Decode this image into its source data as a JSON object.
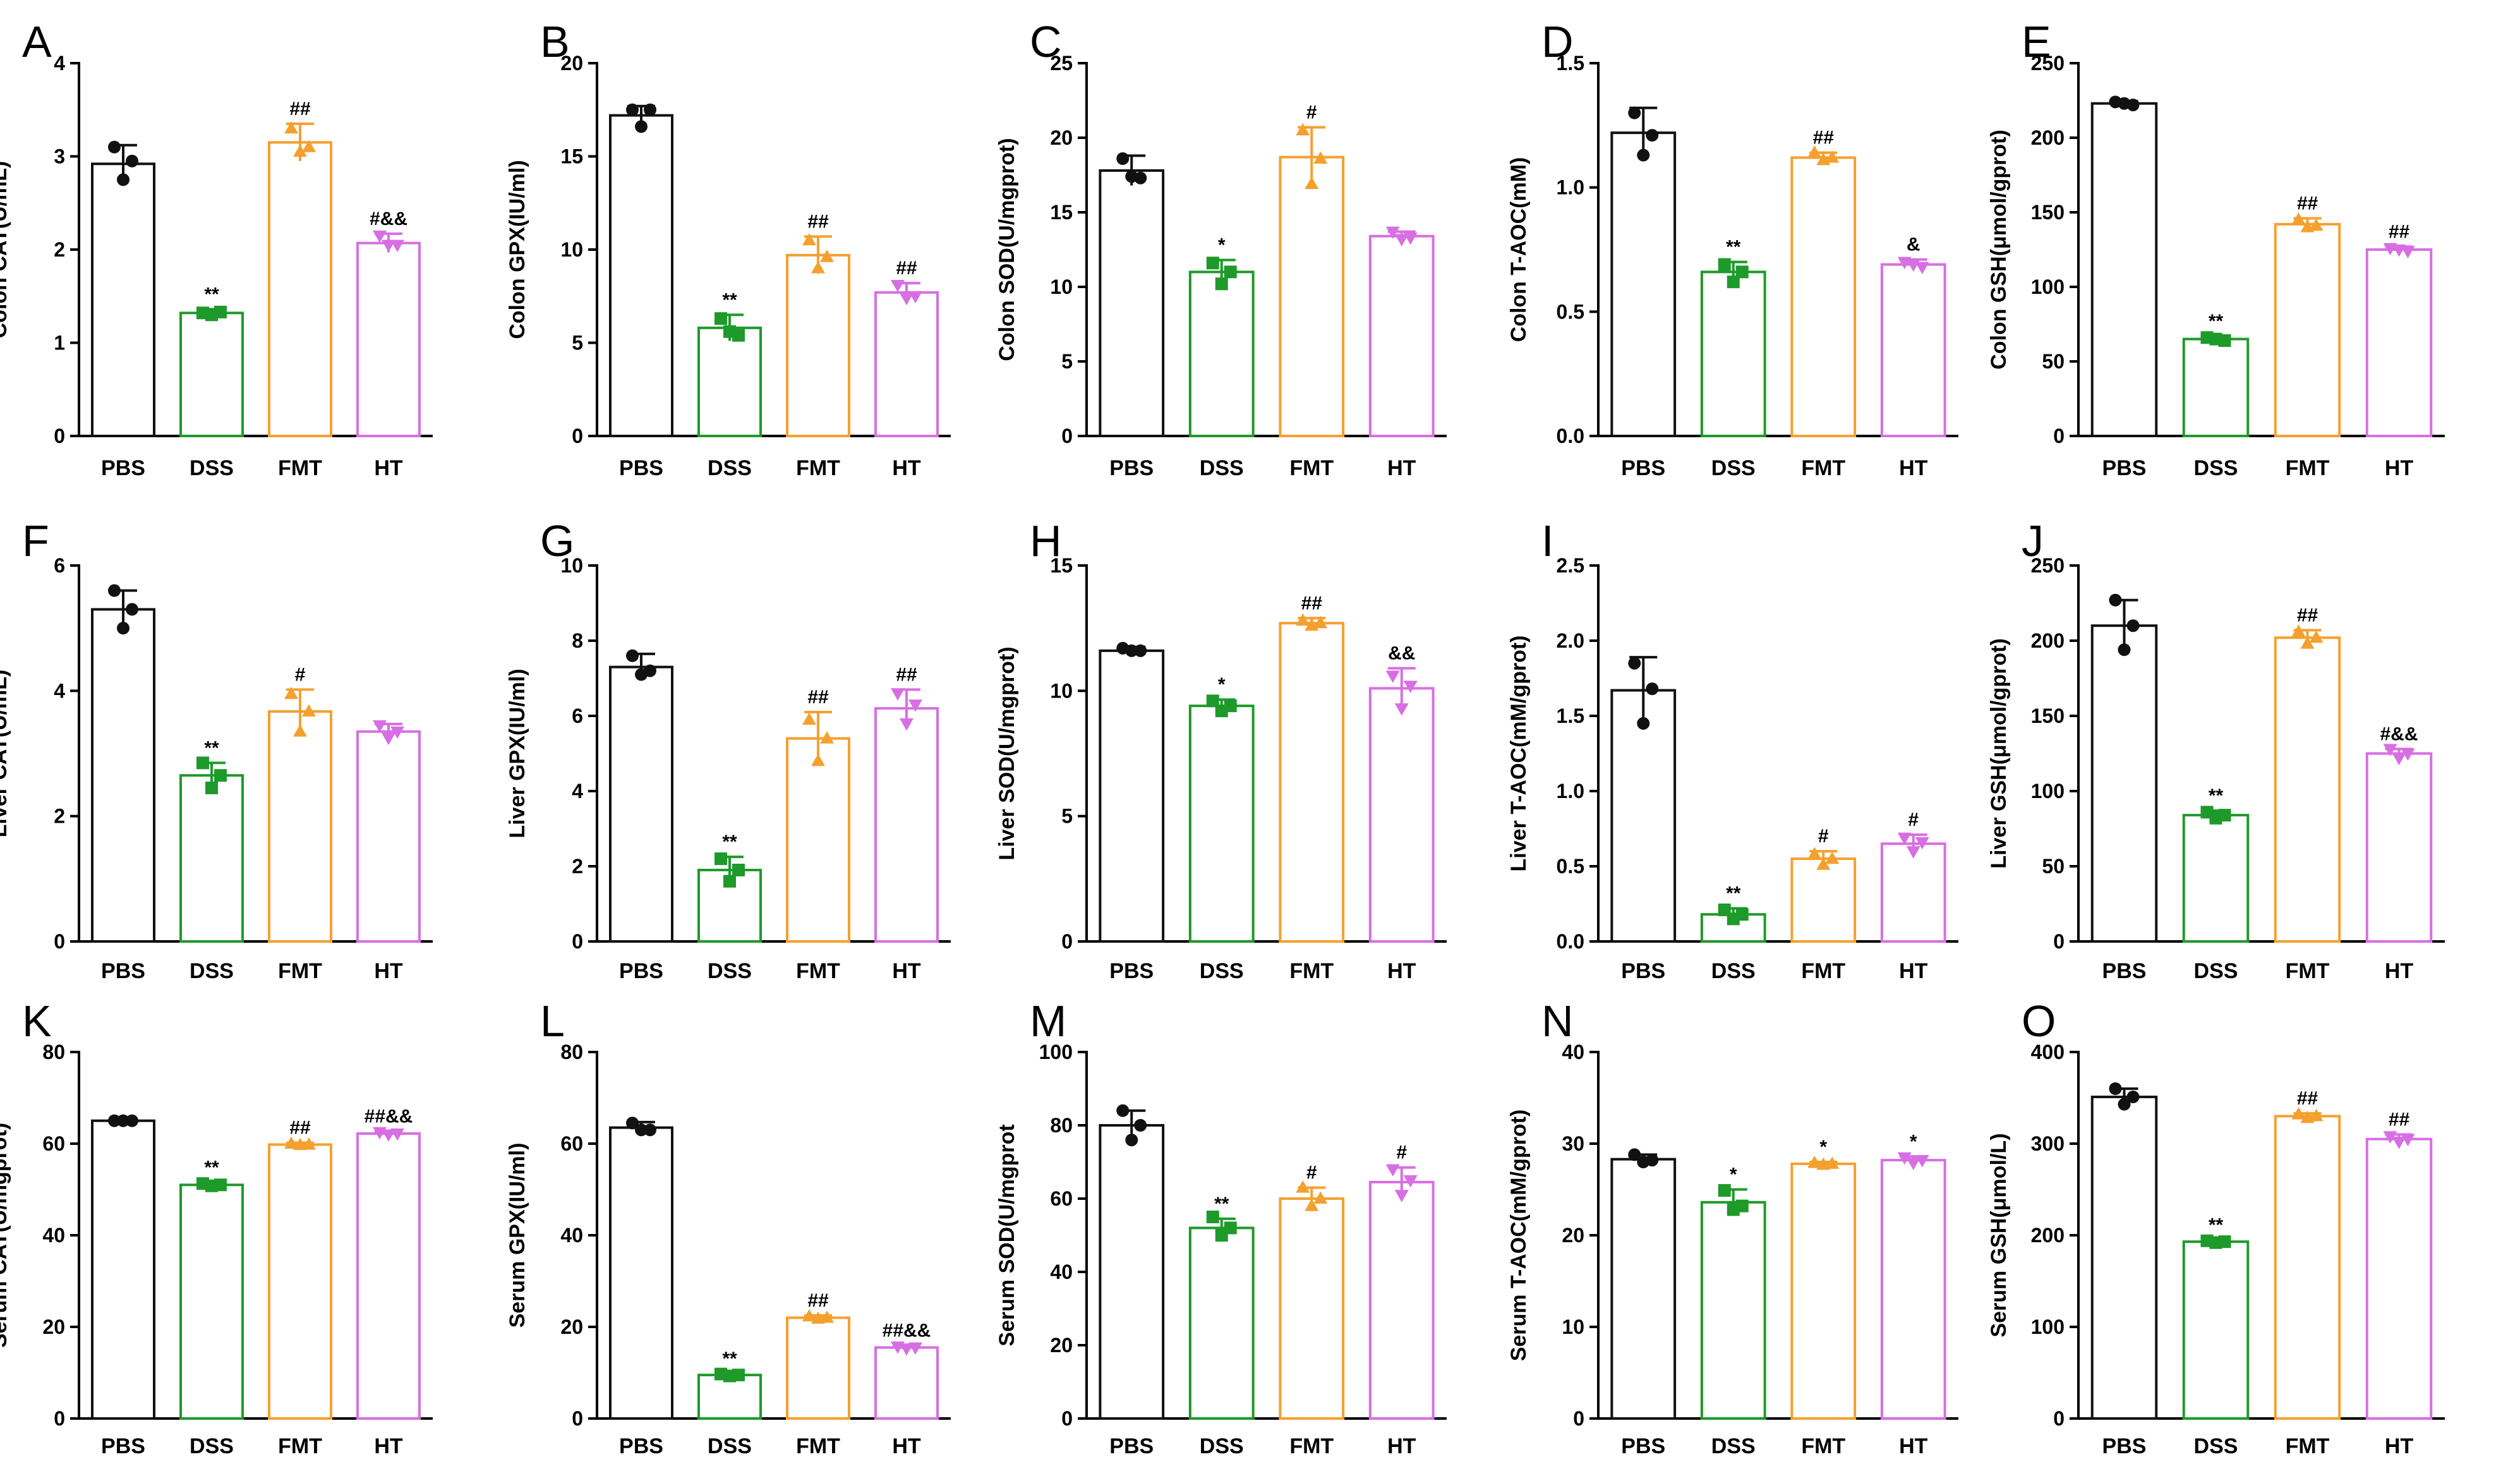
{
  "palette": {
    "PBS": "#111111",
    "DSS": "#1e9a2a",
    "FMT": "#f5a02e",
    "HT": "#d86ee3"
  },
  "chart_data": [
    {
      "type": "bar",
      "panel": "A",
      "ylabel": "Colon CAT(U/mL)",
      "categories": [
        "PBS",
        "DSS",
        "FMT",
        "HT"
      ],
      "ylim": [
        0,
        4
      ],
      "yticks": [
        0,
        1,
        2,
        3,
        4
      ],
      "values": [
        2.92,
        1.32,
        3.15,
        2.07
      ],
      "errors": [
        0.2,
        0.04,
        0.2,
        0.1
      ],
      "points": [
        [
          3.1,
          2.95,
          2.75
        ],
        [
          1.32,
          1.33,
          1.3
        ],
        [
          3.3,
          3.1,
          3.05
        ],
        [
          2.15,
          2.05,
          2.05
        ]
      ],
      "annotations": [
        "",
        "**",
        "##",
        "#&&"
      ]
    },
    {
      "type": "bar",
      "panel": "B",
      "ylabel": "Colon GPX(IU/ml)",
      "categories": [
        "PBS",
        "DSS",
        "FMT",
        "HT"
      ],
      "ylim": [
        0,
        20
      ],
      "yticks": [
        0,
        5,
        10,
        15,
        20
      ],
      "values": [
        17.2,
        5.8,
        9.7,
        7.7
      ],
      "errors": [
        0.5,
        0.7,
        1.0,
        0.5
      ],
      "points": [
        [
          17.5,
          17.5,
          16.6
        ],
        [
          6.3,
          5.4,
          5.6
        ],
        [
          10.5,
          9.6,
          9.0
        ],
        [
          8.1,
          7.5,
          7.4
        ]
      ],
      "annotations": [
        "",
        "**",
        "##",
        "##"
      ]
    },
    {
      "type": "bar",
      "panel": "C",
      "ylabel": "Colon SOD(U/mgprot)",
      "categories": [
        "PBS",
        "DSS",
        "FMT",
        "HT"
      ],
      "ylim": [
        0,
        25
      ],
      "yticks": [
        0,
        5,
        10,
        15,
        20,
        25
      ],
      "values": [
        17.8,
        11.0,
        18.7,
        13.4
      ],
      "errors": [
        1.0,
        0.8,
        2.0,
        0.3
      ],
      "points": [
        [
          18.6,
          17.3,
          17.4
        ],
        [
          11.6,
          11.0,
          10.2
        ],
        [
          20.5,
          18.6,
          16.9
        ],
        [
          13.7,
          13.3,
          13.2
        ]
      ],
      "annotations": [
        "",
        "*",
        "#",
        ""
      ]
    },
    {
      "type": "bar",
      "panel": "D",
      "ylabel": "Colon T-AOC(mM)",
      "categories": [
        "PBS",
        "DSS",
        "FMT",
        "HT"
      ],
      "ylim": [
        0,
        1.5
      ],
      "yticks": [
        "0.0",
        "0.5",
        "1.0",
        "1.5"
      ],
      "values": [
        1.22,
        0.66,
        1.12,
        0.69
      ],
      "errors": [
        0.1,
        0.04,
        0.02,
        0.02
      ],
      "points": [
        [
          1.3,
          1.21,
          1.13
        ],
        [
          0.69,
          0.66,
          0.62
        ],
        [
          1.14,
          1.12,
          1.11
        ],
        [
          0.7,
          0.68,
          0.69
        ]
      ],
      "annotations": [
        "",
        "**",
        "##",
        "&"
      ]
    },
    {
      "type": "bar",
      "panel": "E",
      "ylabel": "Colon GSH(μmol/gprot)",
      "categories": [
        "PBS",
        "DSS",
        "FMT",
        "HT"
      ],
      "ylim": [
        0,
        250
      ],
      "yticks": [
        0,
        50,
        100,
        150,
        200,
        250
      ],
      "values": [
        223,
        65,
        142,
        125
      ],
      "errors": [
        1.5,
        2,
        4,
        2
      ],
      "points": [
        [
          224,
          222,
          223
        ],
        [
          66,
          64,
          65
        ],
        [
          145,
          141,
          140
        ],
        [
          126,
          124,
          125
        ]
      ],
      "annotations": [
        "",
        "**",
        "##",
        "##"
      ]
    },
    {
      "type": "bar",
      "panel": "F",
      "ylabel": "Liver CAT(U/mL)",
      "categories": [
        "PBS",
        "DSS",
        "FMT",
        "HT"
      ],
      "ylim": [
        0,
        6
      ],
      "yticks": [
        0,
        2,
        4,
        6
      ],
      "values": [
        5.3,
        2.65,
        3.67,
        3.35
      ],
      "errors": [
        0.3,
        0.2,
        0.35,
        0.12
      ],
      "points": [
        [
          5.6,
          5.3,
          5.0
        ],
        [
          2.85,
          2.65,
          2.45
        ],
        [
          3.95,
          3.67,
          3.35
        ],
        [
          3.45,
          3.35,
          3.25
        ]
      ],
      "annotations": [
        "",
        "**",
        "#",
        ""
      ]
    },
    {
      "type": "bar",
      "panel": "G",
      "ylabel": "Liver GPX(IU/ml)",
      "categories": [
        "PBS",
        "DSS",
        "FMT",
        "HT"
      ],
      "ylim": [
        0,
        10
      ],
      "yticks": [
        0,
        2,
        4,
        6,
        8,
        10
      ],
      "values": [
        7.3,
        1.9,
        5.4,
        6.2
      ],
      "errors": [
        0.35,
        0.35,
        0.7,
        0.5
      ],
      "points": [
        [
          7.6,
          7.2,
          7.1
        ],
        [
          2.2,
          1.9,
          1.6
        ],
        [
          5.9,
          5.4,
          4.8
        ],
        [
          6.6,
          6.3,
          5.8
        ]
      ],
      "annotations": [
        "",
        "**",
        "##",
        "##"
      ]
    },
    {
      "type": "bar",
      "panel": "H",
      "ylabel": "Liver SOD(U/mgprot)",
      "categories": [
        "PBS",
        "DSS",
        "FMT",
        "HT"
      ],
      "ylim": [
        0,
        15
      ],
      "yticks": [
        0,
        5,
        10,
        15
      ],
      "values": [
        11.6,
        9.4,
        12.7,
        10.1
      ],
      "errors": [
        0.15,
        0.25,
        0.2,
        0.8
      ],
      "points": [
        [
          11.7,
          11.6,
          11.6
        ],
        [
          9.6,
          9.4,
          9.2
        ],
        [
          12.8,
          12.7,
          12.6
        ],
        [
          10.6,
          10.2,
          9.3
        ]
      ],
      "annotations": [
        "",
        "*",
        "##",
        "&&"
      ]
    },
    {
      "type": "bar",
      "panel": "I",
      "ylabel": "Liver T-AOC(mM/gprot)",
      "categories": [
        "PBS",
        "DSS",
        "FMT",
        "HT"
      ],
      "ylim": [
        0,
        2.5
      ],
      "yticks": [
        "0.0",
        "0.5",
        "1.0",
        "1.5",
        "2.0",
        "2.5"
      ],
      "values": [
        1.67,
        0.18,
        0.55,
        0.65
      ],
      "errors": [
        0.22,
        0.04,
        0.05,
        0.06
      ],
      "points": [
        [
          1.85,
          1.68,
          1.45
        ],
        [
          0.21,
          0.18,
          0.15
        ],
        [
          0.58,
          0.55,
          0.51
        ],
        [
          0.69,
          0.66,
          0.6
        ]
      ],
      "annotations": [
        "",
        "**",
        "#",
        "#"
      ]
    },
    {
      "type": "bar",
      "panel": "J",
      "ylabel": "Liver GSH(μmol/gprot)",
      "categories": [
        "PBS",
        "DSS",
        "FMT",
        "HT"
      ],
      "ylim": [
        0,
        250
      ],
      "yticks": [
        0,
        50,
        100,
        150,
        200,
        250
      ],
      "values": [
        210,
        84,
        202,
        125
      ],
      "errors": [
        17,
        3,
        5,
        3
      ],
      "points": [
        [
          227,
          210,
          194
        ],
        [
          86,
          84,
          82
        ],
        [
          206,
          202,
          198
        ],
        [
          128,
          125,
          122
        ]
      ],
      "annotations": [
        "",
        "**",
        "##",
        "#&&"
      ]
    },
    {
      "type": "bar",
      "panel": "K",
      "ylabel": "Serum CAT(U/mgprot)",
      "categories": [
        "PBS",
        "DSS",
        "FMT",
        "HT"
      ],
      "ylim": [
        0,
        80
      ],
      "yticks": [
        0,
        20,
        40,
        60,
        80
      ],
      "values": [
        65,
        51,
        59.8,
        62.2
      ],
      "errors": [
        0.2,
        0.5,
        0.4,
        0.5
      ],
      "points": [
        [
          65,
          65,
          65
        ],
        [
          51.3,
          51,
          50.8
        ],
        [
          60,
          59.8,
          59.7
        ],
        [
          62.5,
          62.2,
          62
        ]
      ],
      "annotations": [
        "",
        "**",
        "##",
        "##&&"
      ]
    },
    {
      "type": "bar",
      "panel": "L",
      "ylabel": "Serum GPX(IU/ml)",
      "categories": [
        "PBS",
        "DSS",
        "FMT",
        "HT"
      ],
      "ylim": [
        0,
        80
      ],
      "yticks": [
        0,
        20,
        40,
        60,
        80
      ],
      "values": [
        63.5,
        9.5,
        22,
        15.5
      ],
      "errors": [
        1.2,
        0.3,
        0.5,
        0.4
      ],
      "points": [
        [
          64.5,
          63,
          63
        ],
        [
          9.7,
          9.5,
          9.3
        ],
        [
          22.3,
          22,
          21.8
        ],
        [
          15.7,
          15.5,
          15.3
        ]
      ],
      "annotations": [
        "",
        "**",
        "##",
        "##&&"
      ]
    },
    {
      "type": "bar",
      "panel": "M",
      "ylabel": "Serum SOD(U/mgprot",
      "categories": [
        "PBS",
        "DSS",
        "FMT",
        "HT"
      ],
      "ylim": [
        0,
        100
      ],
      "yticks": [
        0,
        20,
        40,
        60,
        80,
        100
      ],
      "values": [
        80,
        52,
        60,
        64.5
      ],
      "errors": [
        4,
        2.5,
        3,
        4
      ],
      "points": [
        [
          84,
          80,
          76
        ],
        [
          55,
          52,
          50
        ],
        [
          63,
          60,
          58
        ],
        [
          68,
          65,
          61
        ]
      ],
      "annotations": [
        "",
        "**",
        "#",
        "#"
      ]
    },
    {
      "type": "bar",
      "panel": "N",
      "ylabel": "Serum T-AOC(mM/gprot)",
      "categories": [
        "PBS",
        "DSS",
        "FMT",
        "HT"
      ],
      "ylim": [
        0,
        40
      ],
      "yticks": [
        0,
        10,
        20,
        30,
        40
      ],
      "values": [
        28.3,
        23.6,
        27.8,
        28.2
      ],
      "errors": [
        0.5,
        1.4,
        0.2,
        0.4
      ],
      "points": [
        [
          28.8,
          28.2,
          28
        ],
        [
          24.9,
          23.2,
          22.8
        ],
        [
          27.9,
          27.8,
          27.7
        ],
        [
          28.5,
          28.2,
          27.9
        ]
      ],
      "annotations": [
        "",
        "*",
        "*",
        "*"
      ]
    },
    {
      "type": "bar",
      "panel": "O",
      "ylabel": "Serum GSH(μmol/L)",
      "categories": [
        "PBS",
        "DSS",
        "FMT",
        "HT"
      ],
      "ylim": [
        0,
        400
      ],
      "yticks": [
        0,
        100,
        200,
        300,
        400
      ],
      "values": [
        351,
        193,
        330,
        305
      ],
      "errors": [
        9,
        2,
        3,
        5
      ],
      "points": [
        [
          360,
          351,
          343
        ],
        [
          194,
          193,
          192
        ],
        [
          332,
          330,
          328
        ],
        [
          308,
          305,
          302
        ]
      ],
      "annotations": [
        "",
        "**",
        "##",
        "##"
      ]
    }
  ]
}
